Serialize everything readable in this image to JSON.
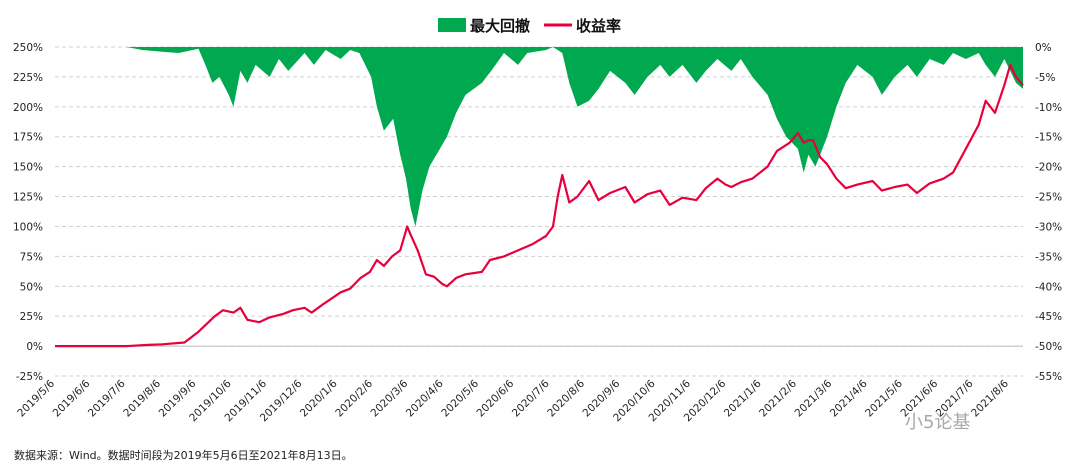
{
  "chart_data": {
    "type": "line",
    "legend": {
      "position": "top-center",
      "entries": [
        {
          "label": "最大回撤",
          "kind": "area",
          "color": "#00a84f"
        },
        {
          "label": "收益率",
          "kind": "line",
          "color": "#e8003d"
        }
      ]
    },
    "left_axis": {
      "ticks": [
        "250%",
        "225%",
        "200%",
        "175%",
        "150%",
        "125%",
        "100%",
        "75%",
        "50%",
        "25%",
        "0%",
        "-25%"
      ],
      "range": [
        -25,
        250
      ]
    },
    "right_axis": {
      "ticks": [
        "0%",
        "-5%",
        "-10%",
        "-15%",
        "-20%",
        "-25%",
        "-30%",
        "-35%",
        "-40%",
        "-45%",
        "-50%",
        "-55%"
      ],
      "range": [
        -55,
        0
      ]
    },
    "x_ticks": [
      "2019/5/6",
      "2019/6/6",
      "2019/7/6",
      "2019/8/6",
      "2019/9/6",
      "2019/10/6",
      "2019/11/6",
      "2019/12/6",
      "2020/1/6",
      "2020/2/6",
      "2020/3/6",
      "2020/4/6",
      "2020/5/6",
      "2020/6/6",
      "2020/7/6",
      "2020/8/6",
      "2020/9/6",
      "2020/10/6",
      "2020/11/6",
      "2020/12/6",
      "2021/1/6",
      "2021/2/6",
      "2021/3/6",
      "2021/4/6",
      "2021/5/6",
      "2021/6/6",
      "2021/7/6",
      "2021/8/6"
    ],
    "grid": true,
    "series": [
      {
        "name": "收益率",
        "axis": "left",
        "color": "#e8003d",
        "points": [
          [
            "2019-05-06",
            0
          ],
          [
            "2019-06-06",
            0
          ],
          [
            "2019-07-06",
            0
          ],
          [
            "2019-07-25",
            1
          ],
          [
            "2019-08-06",
            1.5
          ],
          [
            "2019-08-25",
            3
          ],
          [
            "2019-09-06",
            12
          ],
          [
            "2019-09-20",
            25
          ],
          [
            "2019-09-27",
            30
          ],
          [
            "2019-10-06",
            28
          ],
          [
            "2019-10-12",
            32
          ],
          [
            "2019-10-18",
            22
          ],
          [
            "2019-10-28",
            20
          ],
          [
            "2019-11-06",
            24
          ],
          [
            "2019-11-18",
            27
          ],
          [
            "2019-11-26",
            30
          ],
          [
            "2019-12-06",
            32
          ],
          [
            "2019-12-12",
            28
          ],
          [
            "2019-12-22",
            35
          ],
          [
            "2020-01-06",
            45
          ],
          [
            "2020-01-14",
            48
          ],
          [
            "2020-01-23",
            57
          ],
          [
            "2020-01-31",
            62
          ],
          [
            "2020-02-06",
            72
          ],
          [
            "2020-02-12",
            67
          ],
          [
            "2020-02-19",
            75
          ],
          [
            "2020-02-26",
            80
          ],
          [
            "2020-03-03",
            100
          ],
          [
            "2020-03-06",
            93
          ],
          [
            "2020-03-12",
            80
          ],
          [
            "2020-03-19",
            60
          ],
          [
            "2020-03-26",
            58
          ],
          [
            "2020-04-02",
            52
          ],
          [
            "2020-04-06",
            50
          ],
          [
            "2020-04-14",
            57
          ],
          [
            "2020-04-22",
            60
          ],
          [
            "2020-05-06",
            62
          ],
          [
            "2020-05-13",
            72
          ],
          [
            "2020-05-25",
            75
          ],
          [
            "2020-06-06",
            80
          ],
          [
            "2020-06-18",
            85
          ],
          [
            "2020-06-30",
            92
          ],
          [
            "2020-07-06",
            100
          ],
          [
            "2020-07-10",
            125
          ],
          [
            "2020-07-14",
            143
          ],
          [
            "2020-07-20",
            120
          ],
          [
            "2020-07-27",
            125
          ],
          [
            "2020-08-06",
            138
          ],
          [
            "2020-08-14",
            122
          ],
          [
            "2020-08-24",
            128
          ],
          [
            "2020-09-06",
            133
          ],
          [
            "2020-09-14",
            120
          ],
          [
            "2020-09-25",
            127
          ],
          [
            "2020-10-06",
            130
          ],
          [
            "2020-10-14",
            118
          ],
          [
            "2020-10-25",
            124
          ],
          [
            "2020-11-06",
            122
          ],
          [
            "2020-11-14",
            132
          ],
          [
            "2020-11-24",
            140
          ],
          [
            "2020-12-01",
            135
          ],
          [
            "2020-12-06",
            133
          ],
          [
            "2020-12-14",
            137
          ],
          [
            "2020-12-24",
            140
          ],
          [
            "2021-01-06",
            150
          ],
          [
            "2021-01-14",
            163
          ],
          [
            "2021-01-25",
            170
          ],
          [
            "2021-02-01",
            178
          ],
          [
            "2021-02-06",
            170
          ],
          [
            "2021-02-10",
            172
          ],
          [
            "2021-02-14",
            172
          ],
          [
            "2021-02-20",
            158
          ],
          [
            "2021-02-26",
            152
          ],
          [
            "2021-03-06",
            140
          ],
          [
            "2021-03-14",
            132
          ],
          [
            "2021-03-24",
            135
          ],
          [
            "2021-04-06",
            138
          ],
          [
            "2021-04-14",
            130
          ],
          [
            "2021-04-25",
            133
          ],
          [
            "2021-05-06",
            135
          ],
          [
            "2021-05-14",
            128
          ],
          [
            "2021-05-25",
            136
          ],
          [
            "2021-06-06",
            140
          ],
          [
            "2021-06-14",
            145
          ],
          [
            "2021-06-25",
            165
          ],
          [
            "2021-07-06",
            185
          ],
          [
            "2021-07-12",
            205
          ],
          [
            "2021-07-20",
            195
          ],
          [
            "2021-07-28",
            218
          ],
          [
            "2021-08-02",
            235
          ],
          [
            "2021-08-07",
            225
          ],
          [
            "2021-08-13",
            218
          ]
        ]
      },
      {
        "name": "最大回撤",
        "axis": "right",
        "kind": "area",
        "color": "#00a84f",
        "points": [
          [
            "2019-05-06",
            0
          ],
          [
            "2019-07-06",
            0
          ],
          [
            "2019-07-20",
            -0.5
          ],
          [
            "2019-08-06",
            -0.8
          ],
          [
            "2019-08-20",
            -1
          ],
          [
            "2019-09-06",
            -0.3
          ],
          [
            "2019-09-12",
            -3
          ],
          [
            "2019-09-18",
            -6
          ],
          [
            "2019-09-24",
            -5
          ],
          [
            "2019-10-02",
            -8
          ],
          [
            "2019-10-06",
            -10
          ],
          [
            "2019-10-12",
            -4
          ],
          [
            "2019-10-18",
            -6
          ],
          [
            "2019-10-25",
            -3
          ],
          [
            "2019-11-06",
            -5
          ],
          [
            "2019-11-14",
            -2
          ],
          [
            "2019-11-22",
            -4
          ],
          [
            "2019-12-06",
            -1
          ],
          [
            "2019-12-14",
            -3
          ],
          [
            "2019-12-24",
            -0.5
          ],
          [
            "2020-01-06",
            -2
          ],
          [
            "2020-01-14",
            -0.5
          ],
          [
            "2020-01-22",
            -1
          ],
          [
            "2020-02-01",
            -5
          ],
          [
            "2020-02-06",
            -10
          ],
          [
            "2020-02-12",
            -14
          ],
          [
            "2020-02-20",
            -12
          ],
          [
            "2020-02-26",
            -18
          ],
          [
            "2020-03-02",
            -22
          ],
          [
            "2020-03-06",
            -27
          ],
          [
            "2020-03-10",
            -30
          ],
          [
            "2020-03-16",
            -24
          ],
          [
            "2020-03-22",
            -20
          ],
          [
            "2020-03-28",
            -18
          ],
          [
            "2020-04-06",
            -15
          ],
          [
            "2020-04-14",
            -11
          ],
          [
            "2020-04-22",
            -8
          ],
          [
            "2020-05-06",
            -6
          ],
          [
            "2020-05-14",
            -4
          ],
          [
            "2020-05-25",
            -1
          ],
          [
            "2020-06-06",
            -3
          ],
          [
            "2020-06-14",
            -1
          ],
          [
            "2020-06-30",
            -0.5
          ],
          [
            "2020-07-06",
            0
          ],
          [
            "2020-07-14",
            -1
          ],
          [
            "2020-07-20",
            -6
          ],
          [
            "2020-07-27",
            -10
          ],
          [
            "2020-08-06",
            -9
          ],
          [
            "2020-08-14",
            -7
          ],
          [
            "2020-08-24",
            -4
          ],
          [
            "2020-09-06",
            -6
          ],
          [
            "2020-09-14",
            -8
          ],
          [
            "2020-09-25",
            -5
          ],
          [
            "2020-10-06",
            -3
          ],
          [
            "2020-10-14",
            -5
          ],
          [
            "2020-10-25",
            -3
          ],
          [
            "2020-11-06",
            -6
          ],
          [
            "2020-11-14",
            -4
          ],
          [
            "2020-11-24",
            -2
          ],
          [
            "2020-12-06",
            -4
          ],
          [
            "2020-12-14",
            -2
          ],
          [
            "2020-12-24",
            -5
          ],
          [
            "2021-01-06",
            -8
          ],
          [
            "2021-01-14",
            -12
          ],
          [
            "2021-01-22",
            -15
          ],
          [
            "2021-02-01",
            -17
          ],
          [
            "2021-02-06",
            -21
          ],
          [
            "2021-02-10",
            -18
          ],
          [
            "2021-02-16",
            -20
          ],
          [
            "2021-02-20",
            -18
          ],
          [
            "2021-02-26",
            -15
          ],
          [
            "2021-03-06",
            -10
          ],
          [
            "2021-03-14",
            -6
          ],
          [
            "2021-03-24",
            -3
          ],
          [
            "2021-04-06",
            -5
          ],
          [
            "2021-04-14",
            -8
          ],
          [
            "2021-04-25",
            -5
          ],
          [
            "2021-05-06",
            -3
          ],
          [
            "2021-05-14",
            -5
          ],
          [
            "2021-05-25",
            -2
          ],
          [
            "2021-06-06",
            -3
          ],
          [
            "2021-06-14",
            -1
          ],
          [
            "2021-06-25",
            -2
          ],
          [
            "2021-07-06",
            -1
          ],
          [
            "2021-07-12",
            -3
          ],
          [
            "2021-07-20",
            -5
          ],
          [
            "2021-07-28",
            -2
          ],
          [
            "2021-08-02",
            -4
          ],
          [
            "2021-08-07",
            -6
          ],
          [
            "2021-08-13",
            -7
          ]
        ]
      }
    ]
  },
  "footer": {
    "source_note": "数据来源：Wind。数据时间段为2019年5月6日至2021年8月13日。",
    "watermark": "小5论基"
  }
}
